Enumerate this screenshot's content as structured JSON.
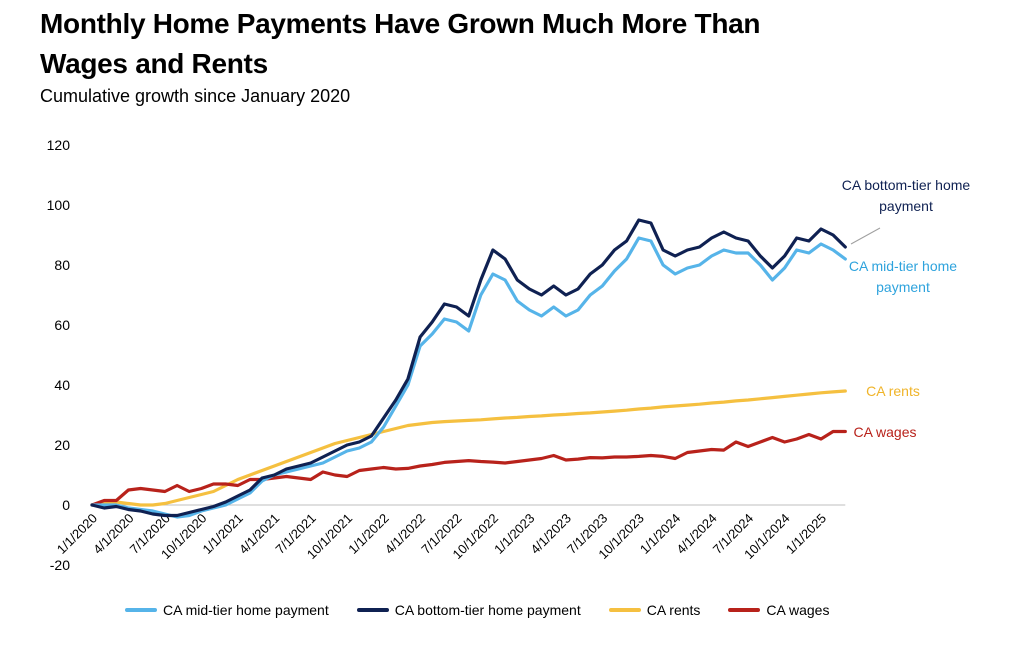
{
  "chart_data": {
    "type": "line",
    "title": "Monthly Home Payments Have Grown Much More Than Wages and Rents",
    "subtitle": "Cumulative growth since January 2020",
    "xlabel": "",
    "ylabel": "",
    "ylim": [
      -20,
      120
    ],
    "yticks": [
      "-20",
      "0",
      "20",
      "40",
      "60",
      "80",
      "100",
      "120"
    ],
    "x_tick_labels": [
      "1/1/2020",
      "4/1/2020",
      "7/1/2020",
      "10/1/2020",
      "1/1/2021",
      "4/1/2021",
      "7/1/2021",
      "10/1/2021",
      "1/1/2022",
      "4/1/2022",
      "7/1/2022",
      "10/1/2022",
      "1/1/2023",
      "4/1/2023",
      "7/1/2023",
      "10/1/2023",
      "1/1/2024",
      "4/1/2024",
      "7/1/2024",
      "10/1/2024",
      "1/1/2025"
    ],
    "grid": false,
    "legend_position": "bottom",
    "series": [
      {
        "name": "CA mid-tier home payment",
        "color": "#56b4e9",
        "values": [
          0,
          0,
          0,
          -1,
          -1.5,
          -2,
          -3,
          -4,
          -3.5,
          -2,
          -1,
          0,
          2,
          4,
          8,
          10,
          11,
          12,
          13,
          14,
          16,
          18,
          19,
          21,
          26,
          33,
          40,
          53,
          57,
          62,
          61,
          58,
          70,
          77,
          75,
          68,
          65,
          63,
          66,
          63,
          65,
          70,
          73,
          78,
          82,
          89,
          88,
          80,
          77,
          79,
          80,
          83,
          85,
          84,
          84,
          80,
          75,
          79,
          85,
          84,
          87,
          85,
          82
        ]
      },
      {
        "name": "CA bottom-tier home payment",
        "color": "#0f2152",
        "values": [
          0,
          -1,
          -0.5,
          -1.5,
          -2,
          -3,
          -3.5,
          -3.5,
          -2.5,
          -1.5,
          -0.5,
          1,
          3,
          5,
          9,
          10,
          12,
          13,
          14,
          16,
          18,
          20,
          21,
          23,
          29,
          35,
          42,
          56,
          61,
          67,
          66,
          63,
          75,
          85,
          82,
          75,
          72,
          70,
          73,
          70,
          72,
          77,
          80,
          85,
          88,
          95,
          94,
          85,
          83,
          85,
          86,
          89,
          91,
          89,
          88,
          83,
          79,
          83,
          89,
          88,
          92,
          90,
          86
        ]
      },
      {
        "name": "CA rents",
        "color": "#f5c040",
        "values": [
          0,
          0.5,
          1,
          0.5,
          0,
          0,
          0.5,
          1.5,
          2.5,
          3.5,
          4.5,
          6.5,
          8.5,
          10,
          11.5,
          13,
          14.5,
          16,
          17.5,
          19,
          20.5,
          21.5,
          22.5,
          23.5,
          24.5,
          25.5,
          26.5,
          27,
          27.5,
          27.8,
          28,
          28.2,
          28.4,
          28.7,
          29,
          29.2,
          29.5,
          29.7,
          30,
          30.2,
          30.5,
          30.7,
          31,
          31.3,
          31.6,
          32,
          32.3,
          32.7,
          33,
          33.3,
          33.6,
          34,
          34.3,
          34.7,
          35,
          35.4,
          35.8,
          36.2,
          36.6,
          37,
          37.4,
          37.7,
          38
        ]
      },
      {
        "name": "CA wages",
        "color": "#b8221b",
        "values": [
          0,
          1.5,
          1.5,
          5,
          5.5,
          5,
          4.5,
          6.5,
          4.5,
          5.5,
          7,
          7,
          6.5,
          8.5,
          8.5,
          9,
          9.5,
          9,
          8.5,
          11,
          10,
          9.5,
          11.5,
          12,
          12.5,
          12,
          12.2,
          13,
          13.5,
          14.2,
          14.5,
          14.8,
          14.5,
          14.3,
          14,
          14.5,
          15,
          15.5,
          16.5,
          15,
          15.3,
          15.8,
          15.7,
          16,
          16,
          16.2,
          16.5,
          16.2,
          15.5,
          17.5,
          18,
          18.5,
          18.3,
          21,
          19.5,
          21,
          22.5,
          21,
          22,
          23.5,
          22,
          24.5,
          24.5
        ]
      }
    ],
    "annotations": [
      {
        "line1": "CA bottom-tier home",
        "line2": "payment",
        "color": "#0f2152"
      },
      {
        "line1": "CA mid-tier home",
        "line2": "payment",
        "color": "#2ea3dd"
      },
      {
        "line1": "CA rents",
        "line2": "",
        "color": "#f0b429"
      },
      {
        "line1": "CA wages",
        "line2": "",
        "color": "#b8221b"
      }
    ]
  }
}
